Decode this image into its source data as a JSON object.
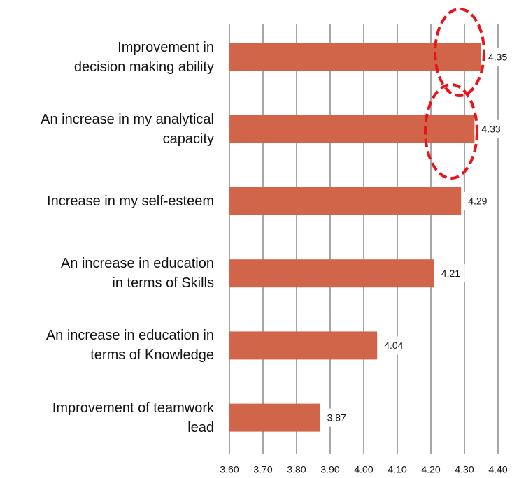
{
  "chart_data": {
    "type": "bar",
    "orientation": "horizontal",
    "categories": [
      "Improvement in\ndecision making ability",
      "An increase in my analytical\ncapacity",
      "Increase in my self-esteem",
      "An increase in education\nin terms of Skills",
      "An increase in education in\nterms of Knowledge",
      "Improvement of teamwork\nlead"
    ],
    "values": [
      4.35,
      4.33,
      4.29,
      4.21,
      4.04,
      3.87
    ],
    "color": "#d0654a",
    "xlim": [
      3.6,
      4.4
    ],
    "xticks": [
      {
        "value": 3.6,
        "label": "3.60"
      },
      {
        "value": 3.7,
        "label": "3.70"
      },
      {
        "value": 3.8,
        "label": "3.80"
      },
      {
        "value": 3.9,
        "label": "3.90"
      },
      {
        "value": 4.0,
        "label": "4.00"
      },
      {
        "value": 4.1,
        "label": "4.10"
      },
      {
        "value": 4.2,
        "label": "4.20"
      },
      {
        "value": 4.3,
        "label": "4.30"
      },
      {
        "value": 4.4,
        "label": "4.40"
      }
    ],
    "grid": true
  }
}
